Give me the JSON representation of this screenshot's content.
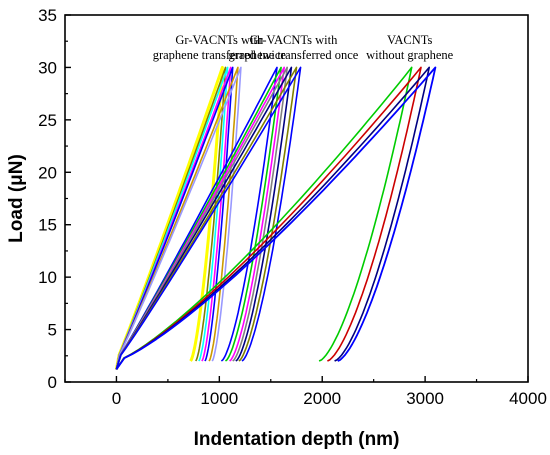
{
  "chart_data": {
    "type": "line",
    "title": "",
    "xlabel": "Indentation depth (nm)",
    "ylabel": "Load (μN)",
    "xlim": [
      -500,
      4000
    ],
    "ylim": [
      0,
      35
    ],
    "xticks": [
      0,
      1000,
      2000,
      3000,
      4000
    ],
    "yticks": [
      0,
      5,
      10,
      15,
      20,
      25,
      30,
      35
    ],
    "grid": false,
    "legend": "none",
    "annotations": [
      {
        "lines": [
          "Gr-VACNTs with",
          "graphene transferred twice"
        ],
        "x": 1000,
        "y": 32.3
      },
      {
        "lines": [
          "Gr-VACNTs with",
          "graphene transferred once"
        ],
        "x": 1720,
        "y": 32.3
      },
      {
        "lines": [
          "VACNTs",
          "without graphene"
        ],
        "x": 2850,
        "y": 32.3
      }
    ],
    "groups": [
      {
        "label": "Gr-VACNTs with graphene transferred twice",
        "curves": [
          {
            "color": "#ffff00",
            "peak_depth": 1030,
            "end_depth": 720,
            "end_load": 2,
            "width": 3
          },
          {
            "color": "#808000",
            "peak_depth": 1060,
            "end_depth": 770,
            "end_load": 2,
            "width": 1.6
          },
          {
            "color": "#00ffff",
            "peak_depth": 1080,
            "end_depth": 800,
            "end_load": 2,
            "width": 1.6
          },
          {
            "color": "#ff00ff",
            "peak_depth": 1110,
            "end_depth": 830,
            "end_load": 2,
            "width": 1.6
          },
          {
            "color": "#0000ff",
            "peak_depth": 1130,
            "end_depth": 860,
            "end_load": 2,
            "width": 1.6
          },
          {
            "color": "#cc9900",
            "peak_depth": 1180,
            "end_depth": 900,
            "end_load": 2,
            "width": 1.6
          },
          {
            "color": "#9999ff",
            "peak_depth": 1210,
            "end_depth": 930,
            "end_load": 2,
            "width": 1.6
          }
        ]
      },
      {
        "label": "Gr-VACNTs with graphene transferred once",
        "curves": [
          {
            "color": "#0000ff",
            "peak_depth": 1560,
            "end_depth": 1020,
            "end_load": 2,
            "width": 1.6
          },
          {
            "color": "#00cc00",
            "peak_depth": 1600,
            "end_depth": 1060,
            "end_load": 2,
            "width": 1.6
          },
          {
            "color": "#ff00ff",
            "peak_depth": 1630,
            "end_depth": 1100,
            "end_load": 2,
            "width": 1.6
          },
          {
            "color": "#808080",
            "peak_depth": 1660,
            "end_depth": 1130,
            "end_load": 2,
            "width": 1.6
          },
          {
            "color": "#000080",
            "peak_depth": 1700,
            "end_depth": 1160,
            "end_load": 2,
            "width": 1.6
          },
          {
            "color": "#808000",
            "peak_depth": 1750,
            "end_depth": 1190,
            "end_load": 2,
            "width": 1.6
          },
          {
            "color": "#0000ff",
            "peak_depth": 1790,
            "end_depth": 1220,
            "end_load": 2,
            "width": 1.6
          }
        ]
      },
      {
        "label": "VACNTs without graphene",
        "curves": [
          {
            "color": "#00cc00",
            "peak_depth": 2870,
            "end_depth": 1970,
            "end_load": 2,
            "width": 1.6
          },
          {
            "color": "#cc0000",
            "peak_depth": 2960,
            "end_depth": 2050,
            "end_load": 2,
            "width": 1.6
          },
          {
            "color": "#000080",
            "peak_depth": 3040,
            "end_depth": 2120,
            "end_load": 2,
            "width": 1.6
          },
          {
            "color": "#0000ff",
            "peak_depth": 3100,
            "end_depth": 2150,
            "end_load": 2,
            "width": 1.8
          }
        ]
      }
    ]
  }
}
